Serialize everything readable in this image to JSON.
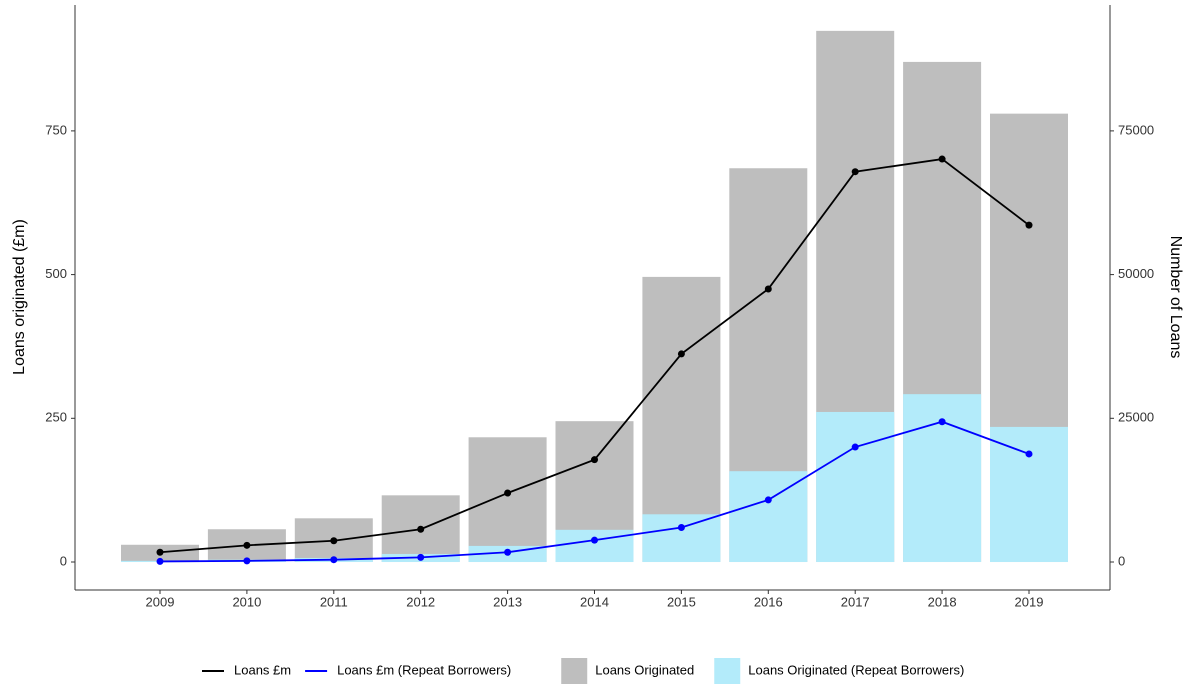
{
  "chart_data": {
    "type": "combo",
    "y_label": "Loans originated (£m)",
    "y2_label": "Number of Loans",
    "categories": [
      "2009",
      "2010",
      "2011",
      "2012",
      "2013",
      "2014",
      "2015",
      "2016",
      "2017",
      "2018",
      "2019"
    ],
    "ylim": [
      -48.7,
      969
    ],
    "yticks": [
      0,
      250,
      500,
      750
    ],
    "y2lim": [
      -4870,
      96900
    ],
    "y2ticks": [
      0,
      25000,
      50000,
      75000
    ],
    "legend": "bottom",
    "series": [
      {
        "name": "Loans Originated",
        "type": "bar",
        "axis": "y2",
        "color": "#bebebe",
        "values": [
          3000,
          5700,
          7600,
          11600,
          21700,
          24500,
          49600,
          68500,
          92400,
          87000,
          78000
        ]
      },
      {
        "name": "Loans Originated (Repeat Borrowers)",
        "type": "bar",
        "axis": "y2",
        "color": "#b3ebfa",
        "values": [
          200,
          400,
          700,
          1400,
          2800,
          5600,
          8300,
          15800,
          26100,
          29200,
          23500
        ]
      },
      {
        "name": "Loans £m",
        "type": "line",
        "axis": "y",
        "color": "#000000",
        "values": [
          17,
          29,
          37,
          57,
          120,
          178,
          362,
          475,
          679,
          701,
          586
        ]
      },
      {
        "name": "Loans £m (Repeat Borrowers)",
        "type": "line",
        "axis": "y",
        "color": "#0000ff",
        "values": [
          1,
          2,
          4,
          8,
          17,
          38,
          60,
          108,
          200,
          244,
          188
        ]
      }
    ]
  }
}
